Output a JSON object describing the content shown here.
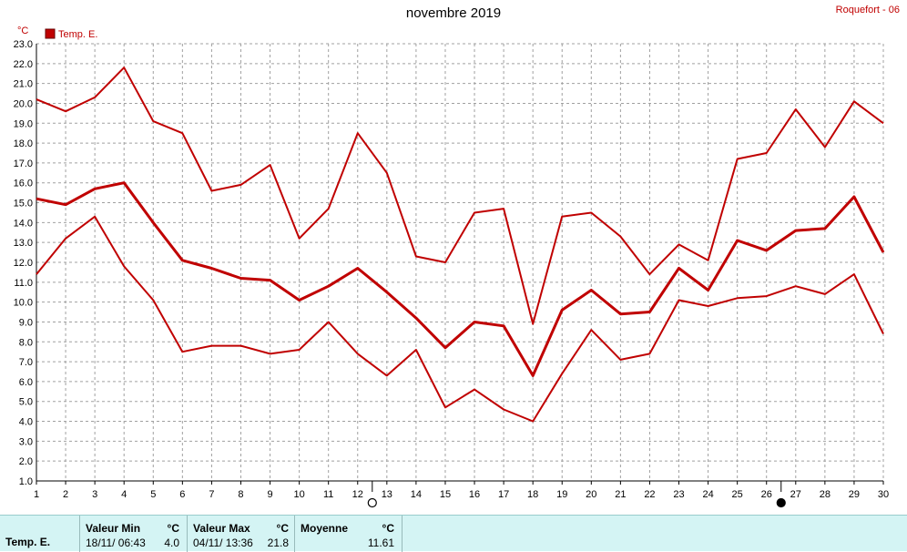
{
  "header": {
    "title": "novembre 2019",
    "station": "Roquefort - 06"
  },
  "chart_data": {
    "type": "line",
    "title": "novembre 2019",
    "y_unit": "°C",
    "legend": [
      {
        "label": "Temp. E.",
        "color": "#c00000"
      }
    ],
    "legend_position": "top-left",
    "grid": true,
    "x": [
      1,
      2,
      3,
      4,
      5,
      6,
      7,
      8,
      9,
      10,
      11,
      12,
      13,
      14,
      15,
      16,
      17,
      18,
      19,
      20,
      21,
      22,
      23,
      24,
      25,
      26,
      27,
      28,
      29,
      30
    ],
    "ylim": [
      1.0,
      23.0
    ],
    "y_ticks": [
      "1.0",
      "2.0",
      "3.0",
      "4.0",
      "5.0",
      "6.0",
      "7.0",
      "8.0",
      "9.0",
      "10.0",
      "11.0",
      "12.0",
      "13.0",
      "14.0",
      "15.0",
      "16.0",
      "17.0",
      "18.0",
      "19.0",
      "20.0",
      "21.0",
      "22.0",
      "23.0"
    ],
    "series": [
      {
        "role": "max",
        "values": [
          20.2,
          19.6,
          20.3,
          21.8,
          19.1,
          18.5,
          15.6,
          15.9,
          16.9,
          13.2,
          14.7,
          18.5,
          16.5,
          12.3,
          12.0,
          14.5,
          14.7,
          8.9,
          14.3,
          14.5,
          13.3,
          11.4,
          12.9,
          12.1,
          17.2,
          17.5,
          19.7,
          17.8,
          20.1,
          19.0
        ]
      },
      {
        "role": "mean",
        "values": [
          15.2,
          14.9,
          15.7,
          16.0,
          14.0,
          12.1,
          11.7,
          11.2,
          11.1,
          10.1,
          10.8,
          11.7,
          10.5,
          9.2,
          7.7,
          9.0,
          8.8,
          6.3,
          9.6,
          10.6,
          9.4,
          9.5,
          11.7,
          10.6,
          13.1,
          12.6,
          13.6,
          13.7,
          15.3,
          12.5
        ]
      },
      {
        "role": "min",
        "values": [
          11.4,
          13.2,
          14.3,
          11.8,
          10.1,
          7.5,
          7.8,
          7.8,
          7.4,
          7.6,
          9.0,
          7.4,
          6.3,
          7.6,
          4.7,
          5.6,
          4.6,
          4.0,
          6.4,
          8.6,
          7.1,
          7.4,
          10.1,
          9.8,
          10.2,
          10.3,
          10.8,
          10.4,
          11.4,
          8.4
        ]
      }
    ],
    "moon_phases": [
      {
        "day": 12.5,
        "phase": "first-quarter"
      },
      {
        "day": 26.5,
        "phase": "full"
      }
    ]
  },
  "stats": {
    "label": "Temp. E.",
    "min": {
      "label": "Valeur Min",
      "unit": "°C",
      "date": "18/11/ 06:43",
      "value": "4.0"
    },
    "max": {
      "label": "Valeur Max",
      "unit": "°C",
      "date": "04/11/ 13:36",
      "value": "21.8"
    },
    "mean": {
      "label": "Moyenne",
      "unit": "°C",
      "value": "11.61"
    }
  },
  "colors": {
    "line": "#c00000",
    "grid": "#a0a0a0",
    "stats_bg": "#d4f4f4"
  }
}
